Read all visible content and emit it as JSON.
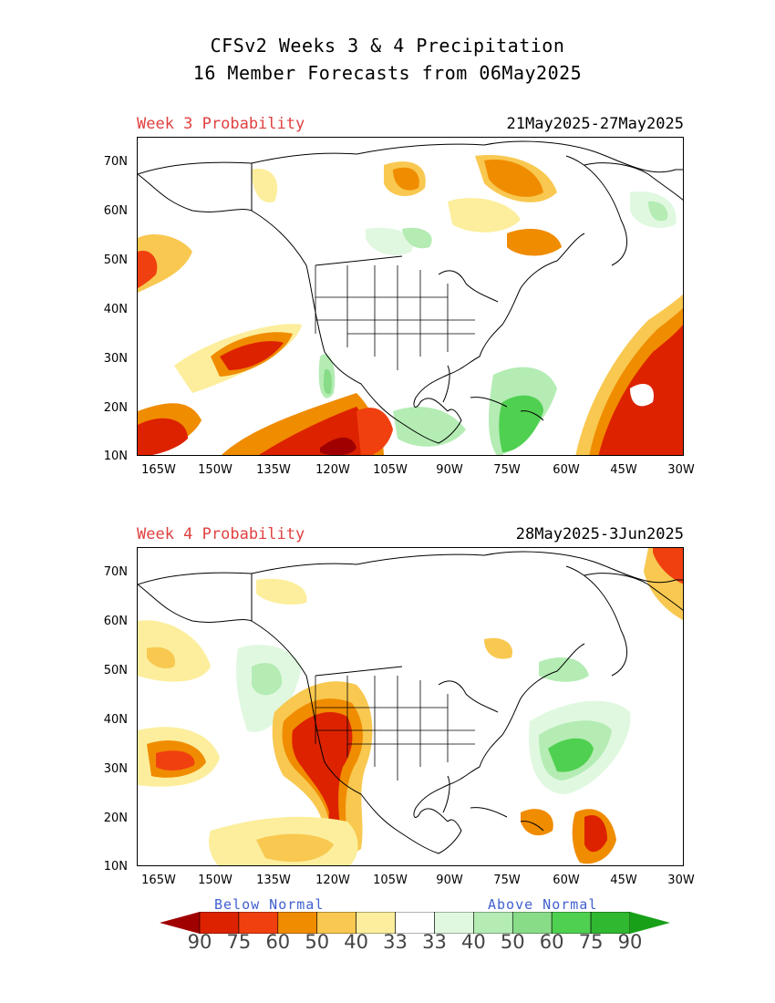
{
  "header": {
    "title_line1": "CFSv2 Weeks 3 & 4 Precipitation",
    "title_line2": "16 Member Forecasts from 06May2025"
  },
  "panels": [
    {
      "label": "Week 3 Probability",
      "dates": "21May2025-27May2025"
    },
    {
      "label": "Week 4 Probability",
      "dates": "28May2025-3Jun2025"
    }
  ],
  "axes": {
    "lat_labels": [
      "70N",
      "60N",
      "50N",
      "40N",
      "30N",
      "20N",
      "10N"
    ],
    "lon_labels": [
      "165W",
      "150W",
      "135W",
      "120W",
      "105W",
      "90W",
      "75W",
      "60W",
      "45W",
      "30W"
    ]
  },
  "legend": {
    "below_label": "Below Normal",
    "above_label": "Above Normal",
    "values": [
      "90",
      "75",
      "60",
      "50",
      "40",
      "33",
      "33",
      "40",
      "50",
      "60",
      "75",
      "90"
    ],
    "colors": [
      "#a00000",
      "#dd2200",
      "#f04010",
      "#f08c00",
      "#f8c850",
      "#fcee9c",
      "#ffffff",
      "#e0f8e0",
      "#b4ecb4",
      "#88dc88",
      "#50d050",
      "#30b830",
      "#18a018"
    ]
  }
}
